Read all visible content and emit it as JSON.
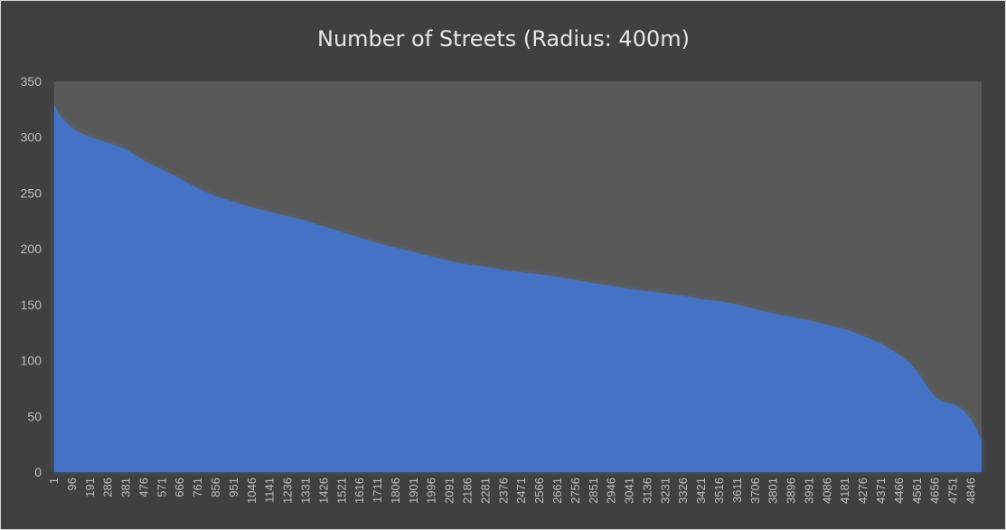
{
  "chart_data": {
    "type": "area",
    "title": "Number of Streets (Radius: 400m)",
    "xlabel": "",
    "ylabel": "",
    "ylim": [
      0,
      350
    ],
    "y_ticks": [
      0,
      50,
      100,
      150,
      200,
      250,
      300,
      350
    ],
    "x_tick_labels": [
      "1",
      "96",
      "191",
      "286",
      "381",
      "476",
      "571",
      "666",
      "761",
      "856",
      "951",
      "1046",
      "1141",
      "1236",
      "1331",
      "1426",
      "1521",
      "1616",
      "1711",
      "1806",
      "1901",
      "1996",
      "2091",
      "2186",
      "2281",
      "2376",
      "2471",
      "2566",
      "2661",
      "2756",
      "2851",
      "2946",
      "3041",
      "3136",
      "3231",
      "3326",
      "3421",
      "3516",
      "3611",
      "3706",
      "3801",
      "3896",
      "3991",
      "4086",
      "4181",
      "4276",
      "4371",
      "4466",
      "4561",
      "4656",
      "4751",
      "4846"
    ],
    "x_range": [
      1,
      4901
    ],
    "grid": false,
    "legend": "none",
    "series": [
      {
        "color": "#4472c4",
        "x": [
          1,
          20,
          50,
          96,
          150,
          191,
          286,
          381,
          476,
          571,
          666,
          761,
          856,
          951,
          1046,
          1141,
          1236,
          1331,
          1426,
          1521,
          1616,
          1711,
          1806,
          1901,
          1996,
          2091,
          2186,
          2281,
          2376,
          2471,
          2566,
          2661,
          2756,
          2851,
          2946,
          3041,
          3136,
          3231,
          3326,
          3421,
          3516,
          3611,
          3706,
          3801,
          3896,
          3991,
          4086,
          4181,
          4276,
          4371,
          4466,
          4520,
          4561,
          4600,
          4656,
          4700,
          4751,
          4800,
          4846,
          4870,
          4890,
          4901
        ],
        "y": [
          330,
          322,
          315,
          308,
          303,
          300,
          295,
          289,
          279,
          271,
          263,
          254,
          247,
          242,
          237,
          233,
          229,
          225,
          220,
          215,
          210,
          205,
          201,
          197,
          193,
          189,
          186,
          184,
          181,
          179,
          177,
          175,
          172,
          169,
          167,
          164,
          162,
          160,
          158,
          155,
          153,
          150,
          146,
          142,
          139,
          136,
          132,
          128,
          122,
          115,
          105,
          98,
          90,
          80,
          67,
          63,
          61,
          56,
          47,
          40,
          32,
          28
        ]
      }
    ]
  }
}
